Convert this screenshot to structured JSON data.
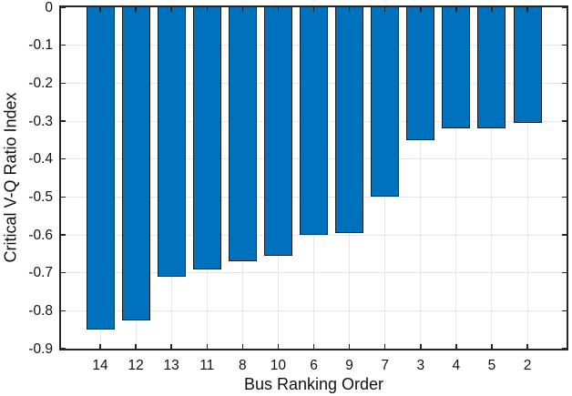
{
  "figure": {
    "background": "#ffffff"
  },
  "chart_data": {
    "type": "bar",
    "title": "",
    "xlabel": "Bus Ranking Order",
    "ylabel": "Critical V-Q Ratio Index",
    "categories": [
      "14",
      "12",
      "13",
      "11",
      "8",
      "10",
      "6",
      "9",
      "7",
      "3",
      "4",
      "5",
      "2"
    ],
    "values": [
      -0.85,
      -0.825,
      -0.71,
      -0.69,
      -0.67,
      -0.655,
      -0.6,
      -0.595,
      -0.5,
      -0.35,
      -0.32,
      -0.32,
      -0.305
    ],
    "ylim": [
      -0.9,
      0
    ],
    "ytick_labels": [
      "0",
      "-0.1",
      "-0.2",
      "-0.3",
      "-0.4",
      "-0.5",
      "-0.6",
      "-0.7",
      "-0.8",
      "-0.9"
    ],
    "grid": "on",
    "legend": "none",
    "colors": {
      "bar_fill": "#0072BD",
      "bar_edge": "#1c1c1c",
      "axis": "#262626",
      "grid": "#e5e5e5",
      "text": "#111111"
    }
  }
}
